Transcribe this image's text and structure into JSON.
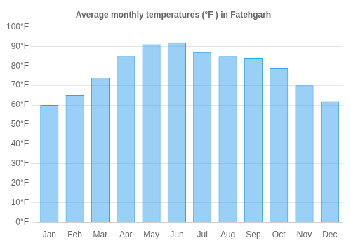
{
  "chart_data": {
    "type": "bar",
    "title": "Average monthly temperatures (°F ) in Fatehgarh",
    "categories": [
      "Jan",
      "Feb",
      "Mar",
      "Apr",
      "May",
      "Jun",
      "Jul",
      "Aug",
      "Sep",
      "Oct",
      "Nov",
      "Dec"
    ],
    "values": [
      60,
      65,
      74,
      85,
      91,
      92,
      87,
      85,
      84,
      79,
      70,
      62
    ],
    "ylim": [
      0,
      100
    ],
    "yticks": [
      {
        "value": 0,
        "label": "0°F"
      },
      {
        "value": 10,
        "label": "10°F"
      },
      {
        "value": 20,
        "label": "20°F"
      },
      {
        "value": 30,
        "label": "30°F"
      },
      {
        "value": 40,
        "label": "40°F"
      },
      {
        "value": 50,
        "label": "50°F"
      },
      {
        "value": 60,
        "label": "60°F"
      },
      {
        "value": 70,
        "label": "70°F"
      },
      {
        "value": 80,
        "label": "80°F"
      },
      {
        "value": 90,
        "label": "90°F"
      },
      {
        "value": 100,
        "label": "100°F"
      }
    ],
    "grid": "y"
  }
}
